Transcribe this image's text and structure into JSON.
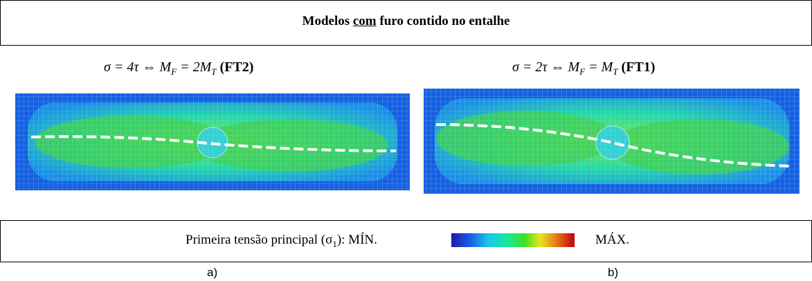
{
  "header": {
    "title_before": "Modelos ",
    "title_underlined": "com",
    "title_after": " furo contido no entalhe"
  },
  "panels": [
    {
      "eq_main": "σ = 4τ ⇔ M",
      "sub1": "F",
      "eq_mid": " = 2M",
      "sub2": "T",
      "tag": "(FT2)",
      "caption": "a)"
    },
    {
      "eq_main": "σ = 2τ ⇔ M",
      "sub1": "F",
      "eq_mid": " = M",
      "sub2": "T",
      "tag": "(FT1)",
      "caption": "b)"
    }
  ],
  "legend": {
    "label_before": "Primeira tensão principal (σ",
    "label_sub": "1",
    "label_after": "): MÍN.",
    "max": "MÁX."
  }
}
